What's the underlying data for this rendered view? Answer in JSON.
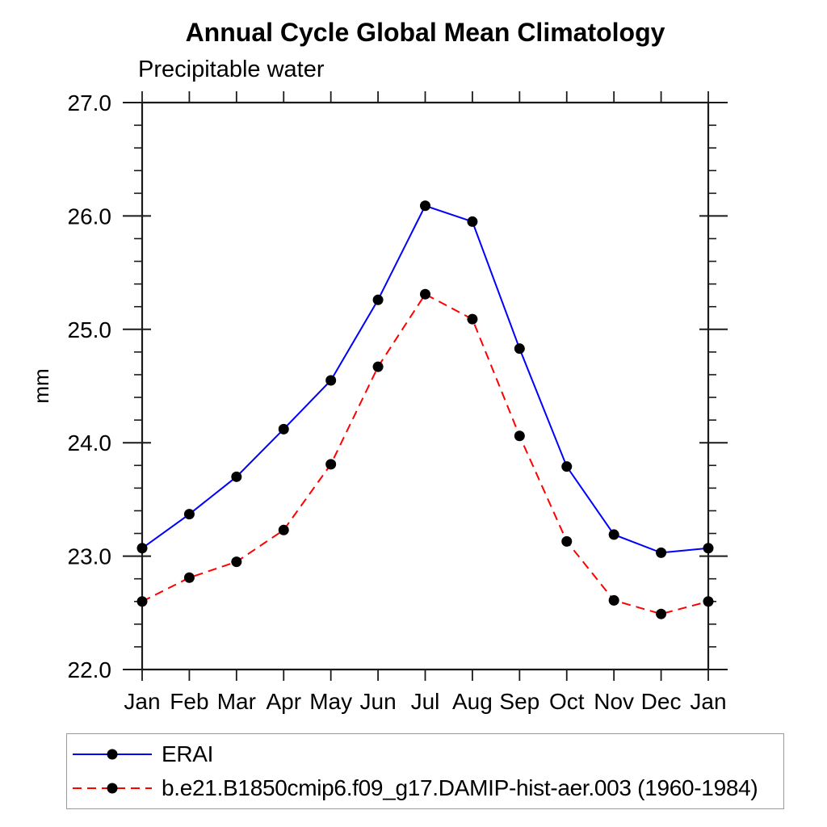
{
  "title": "Annual Cycle Global Mean Climatology",
  "subtitle": "Precipitable water",
  "chart_data": {
    "type": "line",
    "title": "Annual Cycle Global Mean Climatology",
    "subtitle": "Precipitable water",
    "xlabel": "",
    "ylabel": "mm",
    "ylim": [
      22.0,
      27.0
    ],
    "ytick_major_step": 1.0,
    "ytick_minor_step": 0.2,
    "ytick_labels": [
      "22.0",
      "23.0",
      "24.0",
      "25.0",
      "26.0",
      "27.0"
    ],
    "grid": false,
    "legend_position": "bottom",
    "x": [
      "Jan",
      "Feb",
      "Mar",
      "Apr",
      "May",
      "Jun",
      "Jul",
      "Aug",
      "Sep",
      "Oct",
      "Nov",
      "Dec",
      "Jan"
    ],
    "series": [
      {
        "name": "ERAI",
        "line_color": "#0000ff",
        "line_style": "solid",
        "marker": "filled-circle",
        "marker_color": "#000000",
        "values": [
          23.07,
          23.37,
          23.7,
          24.12,
          24.55,
          25.26,
          26.09,
          25.95,
          24.83,
          23.79,
          23.19,
          23.03,
          23.07
        ]
      },
      {
        "name": "b.e21.B1850cmip6.f09_g17.DAMIP-hist-aer.003 (1960-1984)",
        "line_color": "#ff0000",
        "line_style": "dashed",
        "marker": "filled-circle",
        "marker_color": "#000000",
        "values": [
          22.6,
          22.81,
          22.95,
          23.23,
          23.81,
          24.67,
          25.31,
          25.09,
          24.06,
          23.13,
          22.61,
          22.49,
          22.6
        ]
      }
    ]
  }
}
